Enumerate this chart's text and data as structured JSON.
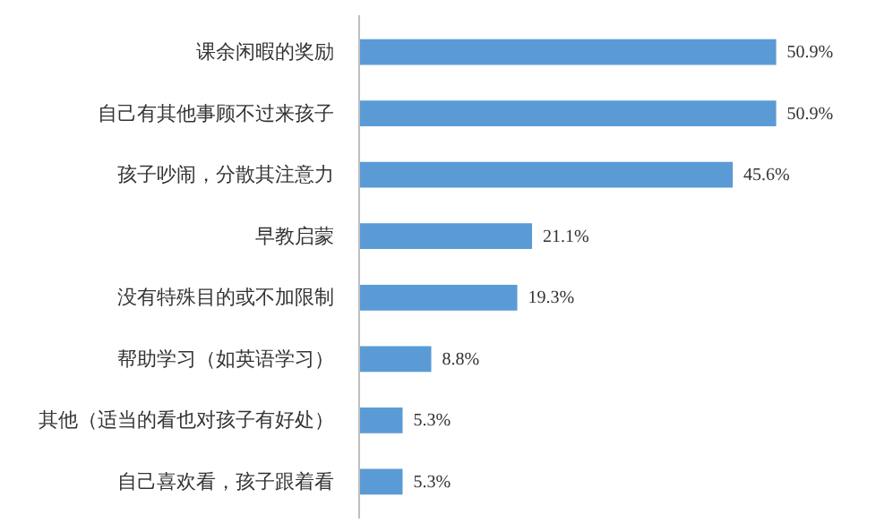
{
  "chart_data": {
    "type": "bar",
    "orientation": "horizontal",
    "categories": [
      "课余闲暇的奖励",
      "自己有其他事顾不过来孩子",
      "孩子吵闹，分散其注意力",
      "早教启蒙",
      "没有特殊目的或不加限制",
      "帮助学习（如英语学习）",
      "其他（适当的看也对孩子有好处）",
      "自己喜欢看，孩子跟着看"
    ],
    "values": [
      50.9,
      50.9,
      45.6,
      21.1,
      19.3,
      8.8,
      5.3,
      5.3
    ],
    "value_labels": [
      "50.9%",
      "50.9%",
      "45.6%",
      "21.1%",
      "19.3%",
      "8.8%",
      "5.3%",
      "5.3%"
    ],
    "color": "#5b9bd5",
    "grid": false
  }
}
